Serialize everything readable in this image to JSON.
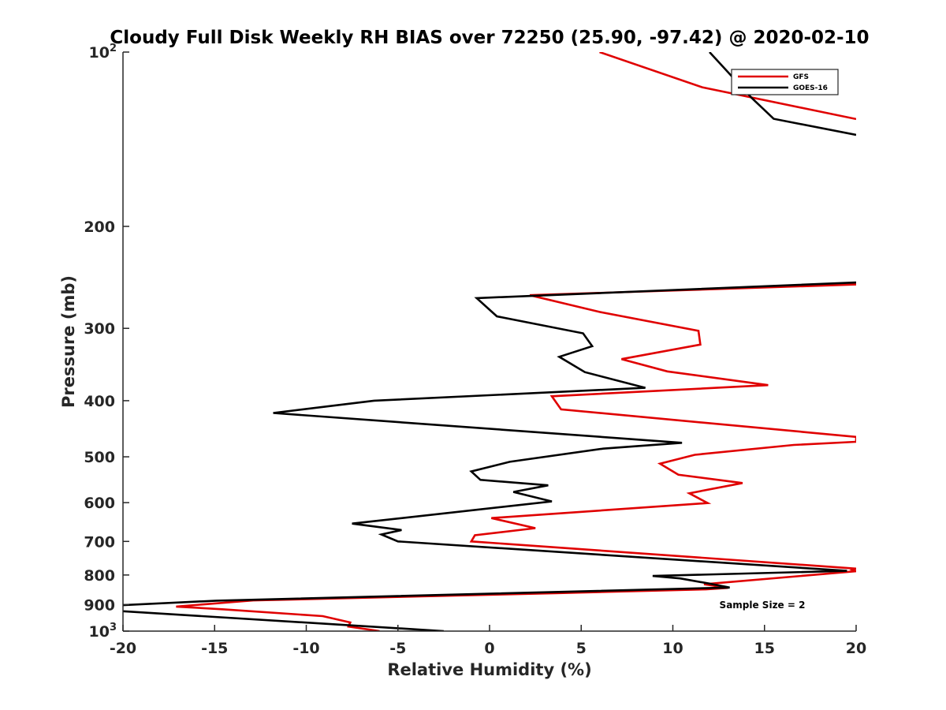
{
  "chart_data": {
    "type": "line",
    "title": "Cloudy Full Disk Weekly RH BIAS over 72250 (25.90, -97.42) @ 2020-02-10",
    "xlabel": "Relative Humidity (%)",
    "ylabel": "Pressure (mb)",
    "xlim": [
      -20,
      20
    ],
    "ylim": [
      100,
      1000
    ],
    "yscale": "log",
    "y_reversed": true,
    "xticks": [
      "-20",
      "-15",
      "-10",
      "-5",
      "0",
      "5",
      "10",
      "15",
      "20"
    ],
    "yticks": [
      {
        "value": 100,
        "base": "10",
        "exp": "2"
      },
      {
        "value": 200,
        "label": "200"
      },
      {
        "value": 300,
        "label": "300"
      },
      {
        "value": 400,
        "label": "400"
      },
      {
        "value": 500,
        "label": "500"
      },
      {
        "value": 600,
        "label": "600"
      },
      {
        "value": 700,
        "label": "700"
      },
      {
        "value": 800,
        "label": "800"
      },
      {
        "value": 900,
        "label": "900"
      },
      {
        "value": 1000,
        "base": "10",
        "exp": "3"
      }
    ],
    "grid": false,
    "legend_position": "top-right",
    "annotation": "Sample Size = 2",
    "series": [
      {
        "name": "GFS",
        "color": "#e00000",
        "points": [
          [
            6.0,
            100
          ],
          [
            11.6,
            115
          ],
          [
            20.0,
            130.5
          ],
          [
            null,
            200
          ],
          [
            20.0,
            252
          ],
          [
            2.2,
            263
          ],
          [
            6.0,
            281
          ],
          [
            11.4,
            303
          ],
          [
            11.5,
            320
          ],
          [
            7.2,
            339
          ],
          [
            9.7,
            356
          ],
          [
            15.2,
            376
          ],
          [
            3.4,
            393
          ],
          [
            3.9,
            414
          ],
          [
            20.0,
            462
          ],
          [
            20.0,
            471
          ],
          [
            16.6,
            477
          ],
          [
            11.2,
            496
          ],
          [
            9.3,
            514
          ],
          [
            10.3,
            537
          ],
          [
            13.8,
            555
          ],
          [
            10.9,
            578
          ],
          [
            11.9,
            601
          ],
          [
            0.1,
            638
          ],
          [
            2.5,
            664
          ],
          [
            -0.8,
            683
          ],
          [
            -1.0,
            700
          ],
          [
            20.0,
            780
          ],
          [
            19.8,
            784
          ],
          [
            20.0,
            788
          ],
          [
            11.7,
            830
          ],
          [
            13.0,
            842
          ],
          [
            11.8,
            847
          ],
          [
            3.6,
            860
          ],
          [
            -12.9,
            885
          ],
          [
            -17.1,
            907
          ],
          [
            -14.5,
            917
          ],
          [
            -9.1,
            942
          ],
          [
            -7.6,
            966
          ],
          [
            -7.7,
            982
          ],
          [
            -6.0,
            1000
          ]
        ]
      },
      {
        "name": "GOES-16",
        "color": "#000000",
        "points": [
          [
            12.0,
            100
          ],
          [
            14.3,
            120
          ],
          [
            15.5,
            130.4
          ],
          [
            20.0,
            139
          ],
          [
            null,
            200
          ],
          [
            20.0,
            250
          ],
          [
            -0.7,
            266
          ],
          [
            0.4,
            286
          ],
          [
            5.1,
            306
          ],
          [
            5.6,
            322
          ],
          [
            3.8,
            336
          ],
          [
            5.2,
            357
          ],
          [
            8.5,
            380
          ],
          [
            -6.3,
            400
          ],
          [
            -11.8,
            420
          ],
          [
            10.5,
            473
          ],
          [
            6.2,
            484
          ],
          [
            1.1,
            510
          ],
          [
            -1.0,
            530
          ],
          [
            -0.5,
            548
          ],
          [
            3.2,
            560
          ],
          [
            1.3,
            575
          ],
          [
            3.4,
            597
          ],
          [
            -7.5,
            652
          ],
          [
            -4.8,
            669
          ],
          [
            -5.9,
            681
          ],
          [
            -5.0,
            700
          ],
          [
            19.5,
            787
          ],
          [
            8.9,
            803
          ],
          [
            10.4,
            811
          ],
          [
            12.0,
            828
          ],
          [
            13.1,
            841
          ],
          [
            -14.9,
            886
          ],
          [
            -20.0,
            902
          ],
          [
            null,
            910
          ],
          [
            -20.0,
            924
          ],
          [
            -2.5,
            1000
          ]
        ]
      }
    ]
  }
}
